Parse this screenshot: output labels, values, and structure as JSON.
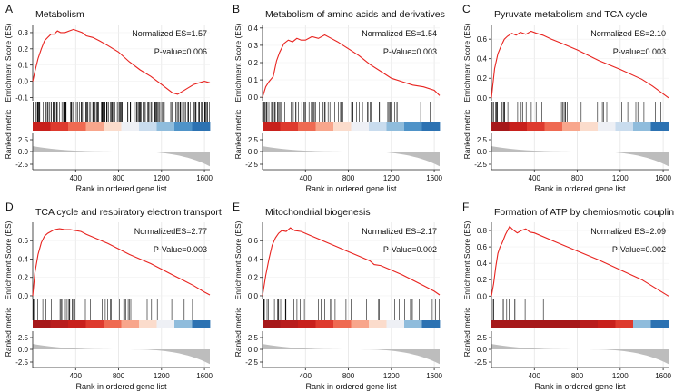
{
  "figure": {
    "shared_xlabel": "Rank in ordered gene list",
    "shared_ylabel_es": "Enrichment Score (ES)",
    "shared_ylabel_rank": "Ranked metric"
  },
  "chart_data": [
    {
      "type": "line",
      "panel": "A",
      "title": "Metabolism",
      "nes_text": "Normalized ES=1.57",
      "pval_text": "P-value=0.006",
      "xlabel": "Rank in ordered gene list",
      "ylabel": "Enrichment Score (ES)",
      "ylabel2": "Ranked metric",
      "xlim": [
        0,
        1650
      ],
      "xticks": [
        "400",
        "800",
        "1200",
        "1600"
      ],
      "ylim": [
        -0.12,
        0.35
      ],
      "yticks": [
        "-0.1",
        "0.0",
        "0.1",
        "0.2",
        "0.3"
      ],
      "metric_ticks": [
        "2.5",
        "0.0",
        "-2.5"
      ],
      "es_curve": {
        "x": [
          0,
          20,
          50,
          80,
          110,
          140,
          170,
          200,
          230,
          260,
          300,
          340,
          380,
          420,
          460,
          500,
          560,
          620,
          700,
          800,
          900,
          1000,
          1100,
          1200,
          1300,
          1350,
          1400,
          1450,
          1500,
          1550,
          1600,
          1650
        ],
        "y": [
          0,
          0.06,
          0.14,
          0.2,
          0.25,
          0.27,
          0.29,
          0.29,
          0.31,
          0.3,
          0.3,
          0.31,
          0.32,
          0.31,
          0.3,
          0.28,
          0.27,
          0.25,
          0.22,
          0.18,
          0.12,
          0.07,
          0.03,
          -0.02,
          -0.07,
          -0.08,
          -0.06,
          -0.04,
          -0.02,
          -0.01,
          0.0,
          -0.01
        ]
      },
      "hit_density": "dense",
      "color_bar": [
        "#c8201c",
        "#de3a2e",
        "#ef6a52",
        "#f8a68c",
        "#fbdccc",
        "#eef0f5",
        "#c9dcee",
        "#8fbcdc",
        "#4f93c8",
        "#2c72b2"
      ]
    },
    {
      "type": "line",
      "panel": "B",
      "title": "Metabolism of amino acids and derivatives",
      "nes_text": "Normalized ES=1.54",
      "pval_text": "P-Value=0.003",
      "xlabel": "Rank in ordered gene list",
      "ylabel": "Enrichment Score (ES)",
      "ylabel2": "Ranked metric",
      "xlim": [
        0,
        1650
      ],
      "xticks": [
        "400",
        "800",
        "1200",
        "1600"
      ],
      "ylim": [
        -0.02,
        0.42
      ],
      "yticks": [
        "0.0",
        "0.1",
        "0.2",
        "0.3",
        "0.4"
      ],
      "metric_ticks": [
        "2.5",
        "0.0",
        "-2.5"
      ],
      "es_curve": {
        "x": [
          0,
          30,
          60,
          100,
          130,
          160,
          200,
          240,
          280,
          320,
          360,
          400,
          460,
          520,
          580,
          640,
          700,
          800,
          900,
          1000,
          1100,
          1200,
          1300,
          1400,
          1500,
          1600,
          1650
        ],
        "y": [
          0,
          0.06,
          0.09,
          0.12,
          0.21,
          0.26,
          0.31,
          0.33,
          0.32,
          0.34,
          0.33,
          0.33,
          0.35,
          0.34,
          0.36,
          0.34,
          0.32,
          0.28,
          0.24,
          0.19,
          0.15,
          0.11,
          0.09,
          0.07,
          0.06,
          0.04,
          0.01
        ]
      },
      "hit_density": "medium",
      "color_bar": [
        "#c8201c",
        "#de3a2e",
        "#ef6a52",
        "#f8a68c",
        "#fbdccc",
        "#eef0f5",
        "#c9dcee",
        "#8fbcdc",
        "#4f93c8",
        "#2c72b2"
      ]
    },
    {
      "type": "line",
      "panel": "C",
      "title": "Pyruvate metabolism and TCA cycle",
      "nes_text": "Normalized ES=2.10",
      "pval_text": "P-value=0.003",
      "xlabel": "Rank in ordered gene list",
      "ylabel": "Enrichment Score (ES)",
      "ylabel2": "Ranked metric",
      "xlim": [
        0,
        1650
      ],
      "xticks": [
        "400",
        "800",
        "1200",
        "1600"
      ],
      "ylim": [
        -0.03,
        0.75
      ],
      "yticks": [
        "0.0",
        "0.2",
        "0.4",
        "0.6"
      ],
      "metric_ticks": [
        "2.5",
        "0.0",
        "-2.5"
      ],
      "es_curve": {
        "x": [
          0,
          30,
          60,
          90,
          120,
          150,
          190,
          230,
          270,
          320,
          370,
          420,
          480,
          560,
          650,
          800,
          1000,
          1200,
          1400,
          1500,
          1650
        ],
        "y": [
          0,
          0.3,
          0.45,
          0.53,
          0.6,
          0.63,
          0.66,
          0.64,
          0.67,
          0.65,
          0.68,
          0.66,
          0.64,
          0.6,
          0.56,
          0.49,
          0.38,
          0.29,
          0.19,
          0.12,
          0.0
        ]
      },
      "hit_density": "sparse",
      "color_bar": [
        "#a6181a",
        "#c8201c",
        "#de3a2e",
        "#ef6a52",
        "#f8a68c",
        "#fbdccc",
        "#eef0f5",
        "#c9dcee",
        "#8fbcdc",
        "#2c72b2"
      ]
    },
    {
      "type": "line",
      "panel": "D",
      "title": "TCA cycle and respiratory electron transport",
      "nes_text": "NormalizedES=2.77",
      "pval_text": "P-Value=0.003",
      "xlabel": "Rank in ordered gene list",
      "ylabel": "Enrichment Score (ES)",
      "ylabel2": "Ranked metric",
      "xlim": [
        0,
        1650
      ],
      "xticks": [
        "400",
        "800",
        "1200",
        "1600"
      ],
      "ylim": [
        -0.03,
        0.8
      ],
      "yticks": [
        "0.0",
        "0.2",
        "0.4",
        "0.6"
      ],
      "metric_ticks": [
        "2.5",
        "0.0",
        "-2.5"
      ],
      "es_curve": {
        "x": [
          0,
          20,
          50,
          80,
          110,
          140,
          170,
          200,
          250,
          300,
          350,
          400,
          450,
          500,
          600,
          700,
          800,
          900,
          1000,
          1100,
          1200,
          1300,
          1400,
          1500,
          1600,
          1650
        ],
        "y": [
          0,
          0.25,
          0.45,
          0.58,
          0.65,
          0.68,
          0.7,
          0.72,
          0.73,
          0.72,
          0.72,
          0.71,
          0.7,
          0.67,
          0.62,
          0.57,
          0.51,
          0.45,
          0.4,
          0.35,
          0.29,
          0.23,
          0.17,
          0.11,
          0.04,
          0.01
        ]
      },
      "hit_density": "sparse",
      "color_bar": [
        "#a6181a",
        "#b81d1d",
        "#c8201c",
        "#de3a2e",
        "#ef6a52",
        "#f8a68c",
        "#fbdccc",
        "#eef0f5",
        "#8fbcdc",
        "#2c72b2"
      ]
    },
    {
      "type": "line",
      "panel": "E",
      "title": "Mitochondrial biogenesis",
      "nes_text": "Normalized ES=2.17",
      "pval_text": "P-Value=0.002",
      "xlabel": "Rank in ordered gene list",
      "ylabel": "Enrichment Score (ES)",
      "ylabel2": "Ranked metric",
      "xlim": [
        0,
        1650
      ],
      "xticks": [
        "400",
        "800",
        "1200",
        "1600"
      ],
      "ylim": [
        -0.03,
        0.8
      ],
      "yticks": [
        "0.0",
        "0.2",
        "0.4",
        "0.6"
      ],
      "metric_ticks": [
        "2.5",
        "0.0",
        "-2.5"
      ],
      "es_curve": {
        "x": [
          0,
          30,
          60,
          90,
          120,
          150,
          180,
          220,
          260,
          300,
          360,
          440,
          520,
          600,
          700,
          800,
          900,
          1000,
          1040,
          1100,
          1200,
          1300,
          1400,
          1500,
          1600,
          1650
        ],
        "y": [
          0,
          0.22,
          0.4,
          0.55,
          0.63,
          0.68,
          0.71,
          0.7,
          0.74,
          0.71,
          0.7,
          0.66,
          0.62,
          0.58,
          0.53,
          0.48,
          0.43,
          0.38,
          0.34,
          0.33,
          0.28,
          0.23,
          0.17,
          0.11,
          0.05,
          0.01
        ]
      },
      "hit_density": "sparse",
      "color_bar": [
        "#a6181a",
        "#b81d1d",
        "#c8201c",
        "#de3a2e",
        "#ef6a52",
        "#f8a68c",
        "#fbdccc",
        "#eef0f5",
        "#8fbcdc",
        "#2c72b2"
      ]
    },
    {
      "type": "line",
      "panel": "F",
      "title": "Formation of ATP by chemiosmotic coupling",
      "nes_text": "Normalized ES=2.09",
      "pval_text": "P-Value=0.002",
      "xlabel": "Rank in ordered gene list",
      "ylabel": "Enrichment Score (ES)",
      "ylabel2": "Ranked metric",
      "xlim": [
        0,
        1650
      ],
      "xticks": [
        "400",
        "800",
        "1200",
        "1600"
      ],
      "ylim": [
        -0.03,
        0.9
      ],
      "yticks": [
        "0.0",
        "0.2",
        "0.4",
        "0.6",
        "0.8"
      ],
      "metric_ticks": [
        "2.5",
        "0.0",
        "-2.5"
      ],
      "es_curve": {
        "x": [
          0,
          20,
          40,
          60,
          80,
          100,
          130,
          170,
          200,
          240,
          280,
          320,
          360,
          400,
          600,
          800,
          1000,
          1200,
          1400,
          1650
        ],
        "y": [
          0,
          0.15,
          0.35,
          0.52,
          0.6,
          0.65,
          0.75,
          0.85,
          0.81,
          0.77,
          0.8,
          0.82,
          0.78,
          0.77,
          0.66,
          0.55,
          0.44,
          0.32,
          0.2,
          0.0
        ]
      },
      "hit_density": "very-sparse",
      "color_bar": [
        "#a6181a",
        "#a6181a",
        "#a6181a",
        "#a6181a",
        "#a6181a",
        "#b81d1d",
        "#c8201c",
        "#de3a2e",
        "#8fbcdc",
        "#2c72b2"
      ]
    }
  ],
  "colors": {
    "es_line": "#e8231f",
    "axis": "#222222",
    "grid": "#e6e6e6",
    "metric_fill": "#bdbdbd"
  }
}
